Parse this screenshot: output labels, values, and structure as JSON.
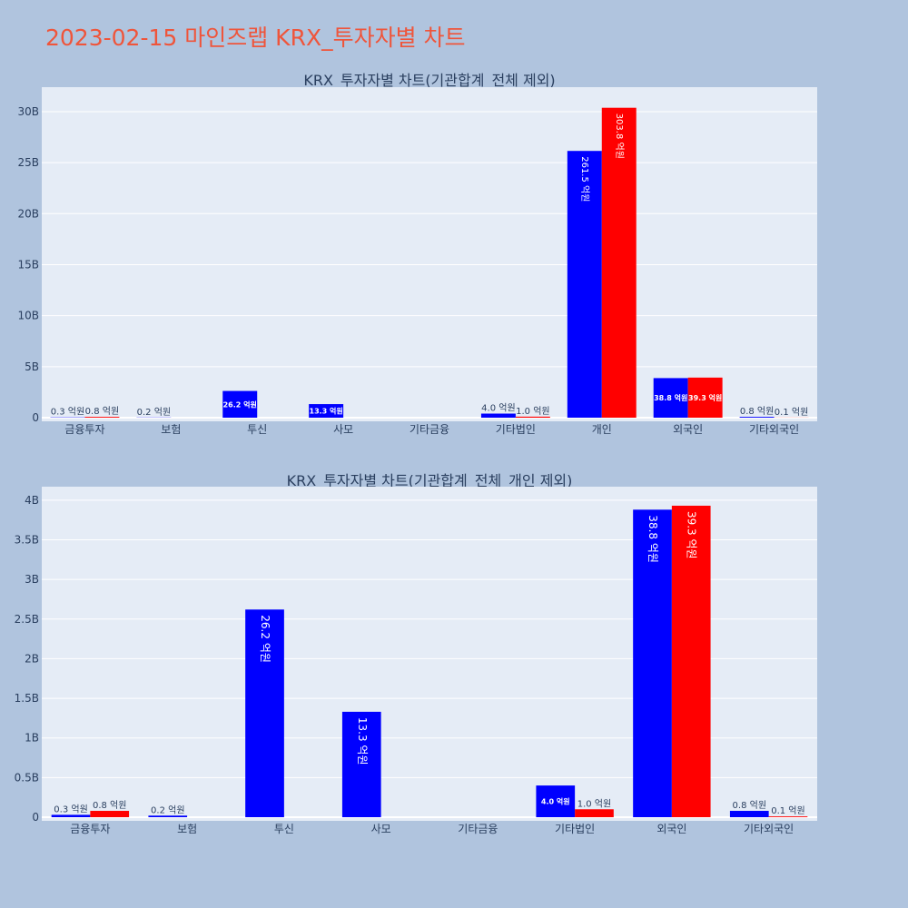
{
  "title": "2023-02-15 마인즈랩 KRX_투자자별 차트",
  "colors": {
    "buy": "#0000ff",
    "sell": "#ff0000",
    "plot_bg": "#e5ecf6",
    "page_bg": "#b0c4de"
  },
  "chart_data": [
    {
      "type": "bar",
      "title": "KRX_투자자별 차트(기관합계_전체 제외)",
      "categories": [
        "금융투자",
        "보험",
        "투신",
        "사모",
        "기타금융",
        "기타법인",
        "개인",
        "외국인",
        "기타외국인"
      ],
      "series": [
        {
          "values": [
            0.03,
            0.02,
            2.62,
            1.33,
            0,
            0.4,
            26.15,
            3.88,
            0.08
          ],
          "labels": [
            "0.3 억원",
            "0.2 억원",
            "26.2 억원",
            "13.3 억원",
            "",
            "4.0 억원",
            "261.5 억원",
            "38.8 억원",
            "0.8 억원"
          ]
        },
        {
          "values": [
            0.08,
            0,
            0,
            0,
            0,
            0.1,
            30.38,
            3.93,
            0.01
          ],
          "labels": [
            "0.8 억원",
            "",
            "",
            "",
            "",
            "1.0 억원",
            "303.8 억원",
            "39.3 억원",
            "0.1 억원"
          ]
        }
      ],
      "ylim": [
        0,
        32.4
      ],
      "yticks": [
        0,
        5,
        10,
        15,
        20,
        25,
        30
      ],
      "yticklabels": [
        "0",
        "5B",
        "10B",
        "15B",
        "20B",
        "25B",
        "30B"
      ],
      "grid": true
    },
    {
      "type": "bar",
      "title": "KRX_투자자별 차트(기관합계_전체_개인 제외)",
      "categories": [
        "금융투자",
        "보험",
        "투신",
        "사모",
        "기타금융",
        "기타법인",
        "외국인",
        "기타외국인"
      ],
      "series": [
        {
          "values": [
            0.03,
            0.02,
            2.62,
            1.33,
            0,
            0.4,
            3.88,
            0.08
          ],
          "labels": [
            "0.3 억원",
            "0.2 억원",
            "26.2 억원",
            "13.3 억원",
            "",
            "4.0 억원",
            "38.8 억원",
            "0.8 억원"
          ]
        },
        {
          "values": [
            0.08,
            0,
            0,
            0,
            0,
            0.1,
            3.93,
            0.01
          ],
          "labels": [
            "0.8 억원",
            "",
            "",
            "",
            "",
            "1.0 억원",
            "39.3 억원",
            "0.1 억원"
          ]
        }
      ],
      "ylim": [
        0,
        4.17
      ],
      "yticks": [
        0,
        0.5,
        1,
        1.5,
        2,
        2.5,
        3,
        3.5,
        4
      ],
      "yticklabels": [
        "0",
        "0.5B",
        "1B",
        "1.5B",
        "2B",
        "2.5B",
        "3B",
        "3.5B",
        "4B"
      ],
      "grid": true
    }
  ]
}
